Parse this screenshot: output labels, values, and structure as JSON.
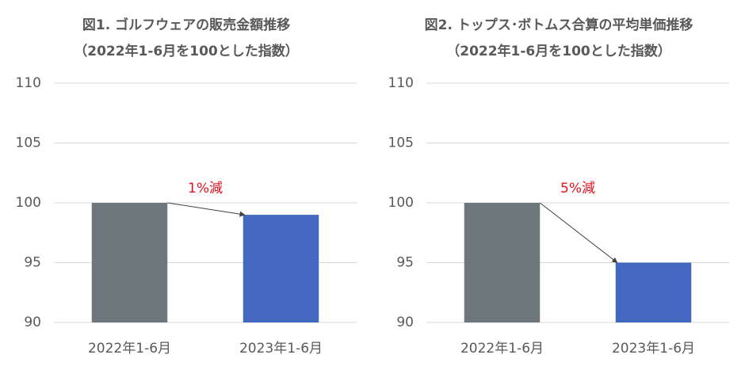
{
  "chart_data": [
    {
      "type": "bar",
      "title": "図1. ゴルフウェアの販売金額推移",
      "subtitle": "（2022年1-6月を100とした指数）",
      "categories": [
        "2022年1-6月",
        "2023年1-6月"
      ],
      "values": [
        100,
        99
      ],
      "colors": [
        "#6d777c",
        "#4468c0"
      ],
      "ylim": [
        90,
        110
      ],
      "yticks": [
        90,
        95,
        100,
        105,
        110
      ],
      "grid": true,
      "annotation": "1%減",
      "annotation_color": "#e8101e"
    },
    {
      "type": "bar",
      "title": "図2. トップス･ボトムス合算の平均単価推移",
      "subtitle": "（2022年1-6月を100とした指数）",
      "categories": [
        "2022年1-6月",
        "2023年1-6月"
      ],
      "values": [
        100,
        95
      ],
      "colors": [
        "#6d777c",
        "#4468c0"
      ],
      "ylim": [
        90,
        110
      ],
      "yticks": [
        90,
        95,
        100,
        105,
        110
      ],
      "grid": true,
      "annotation": "5%減",
      "annotation_color": "#e8101e"
    }
  ]
}
